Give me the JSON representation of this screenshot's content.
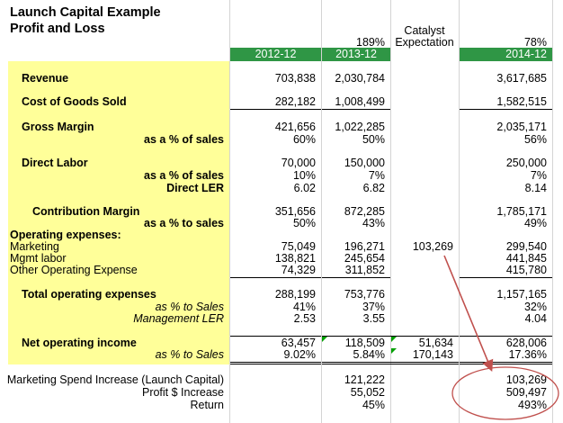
{
  "title": {
    "line1": "Launch Capital Example",
    "line2": "Profit and Loss"
  },
  "header": {
    "growth_2013": "189%",
    "catalyst_line1": "Catalyst",
    "catalyst_line2": "Expectation",
    "growth_2014": "78%",
    "col_2012": "2012-12",
    "col_2013": "2013-12",
    "col_2014": "2014-12"
  },
  "rows": {
    "revenue": {
      "label": "Revenue",
      "v2012": "703,838",
      "v2013": "2,030,784",
      "v2014": "3,617,685"
    },
    "cogs": {
      "label": "Cost of Goods Sold",
      "v2012": "282,182",
      "v2013": "1,008,499",
      "v2014": "1,582,515"
    },
    "gross_margin": {
      "label": "Gross Margin",
      "v2012": "421,656",
      "v2013": "1,022,285",
      "v2014": "2,035,171"
    },
    "gm_pct": {
      "label": "as a % of sales",
      "v2012": "60%",
      "v2013": "50%",
      "v2014": "56%"
    },
    "direct_labor": {
      "label": "Direct Labor",
      "v2012": "70,000",
      "v2013": "150,000",
      "v2014": "250,000"
    },
    "dl_pct": {
      "label": "as a % of sales",
      "v2012": "10%",
      "v2013": "7%",
      "v2014": "7%"
    },
    "direct_ler": {
      "label": "Direct LER",
      "v2012": "6.02",
      "v2013": "6.82",
      "v2014": "8.14"
    },
    "contribution_margin": {
      "label": "Contribution Margin",
      "v2012": "351,656",
      "v2013": "872,285",
      "v2014": "1,785,171"
    },
    "cm_pct": {
      "label": "as a % to sales",
      "v2012": "50%",
      "v2013": "43%",
      "v2014": "49%"
    },
    "opex_header": {
      "label": "Operating expenses:"
    },
    "marketing": {
      "label": "Marketing",
      "v2012": "75,049",
      "v2013": "196,271",
      "catalyst": "103,269",
      "v2014": "299,540"
    },
    "mgmt_labor": {
      "label": "Mgmt labor",
      "v2012": "138,821",
      "v2013": "245,654",
      "v2014": "441,845"
    },
    "other_opex": {
      "label": "Other Operating Expense",
      "v2012": "74,329",
      "v2013": "311,852",
      "v2014": "415,780"
    },
    "total_opex": {
      "label": "Total operating expenses",
      "v2012": "288,199",
      "v2013": "753,776",
      "v2014": "1,157,165"
    },
    "opex_pct": {
      "label": "as % to Sales",
      "v2012": "41%",
      "v2013": "37%",
      "v2014": "32%"
    },
    "mgmt_ler": {
      "label": "Management LER",
      "v2012": "2.53",
      "v2013": "3.55",
      "v2014": "4.04"
    },
    "noi": {
      "label": "Net operating income",
      "v2012": "63,457",
      "v2013": "118,509",
      "catalyst": "51,634",
      "v2014": "628,006"
    },
    "noi_pct": {
      "label": "as % to Sales",
      "v2012": "9.02%",
      "v2013": "5.84%",
      "catalyst": "170,143",
      "v2014": "17.36%"
    },
    "mkt_increase": {
      "label": "Marketing Spend Increase (Launch Capital)",
      "v2013": "121,222",
      "v2014": "103,269"
    },
    "profit_increase": {
      "label": "Profit $ Increase",
      "v2013": "55,052",
      "v2014": "509,497"
    },
    "return": {
      "label": "Return",
      "v2013": "45%",
      "v2014": "493%"
    }
  },
  "colors": {
    "label_fill": "#ffff99",
    "header_fill": "#2f9645",
    "annotation": "#c0504d"
  }
}
